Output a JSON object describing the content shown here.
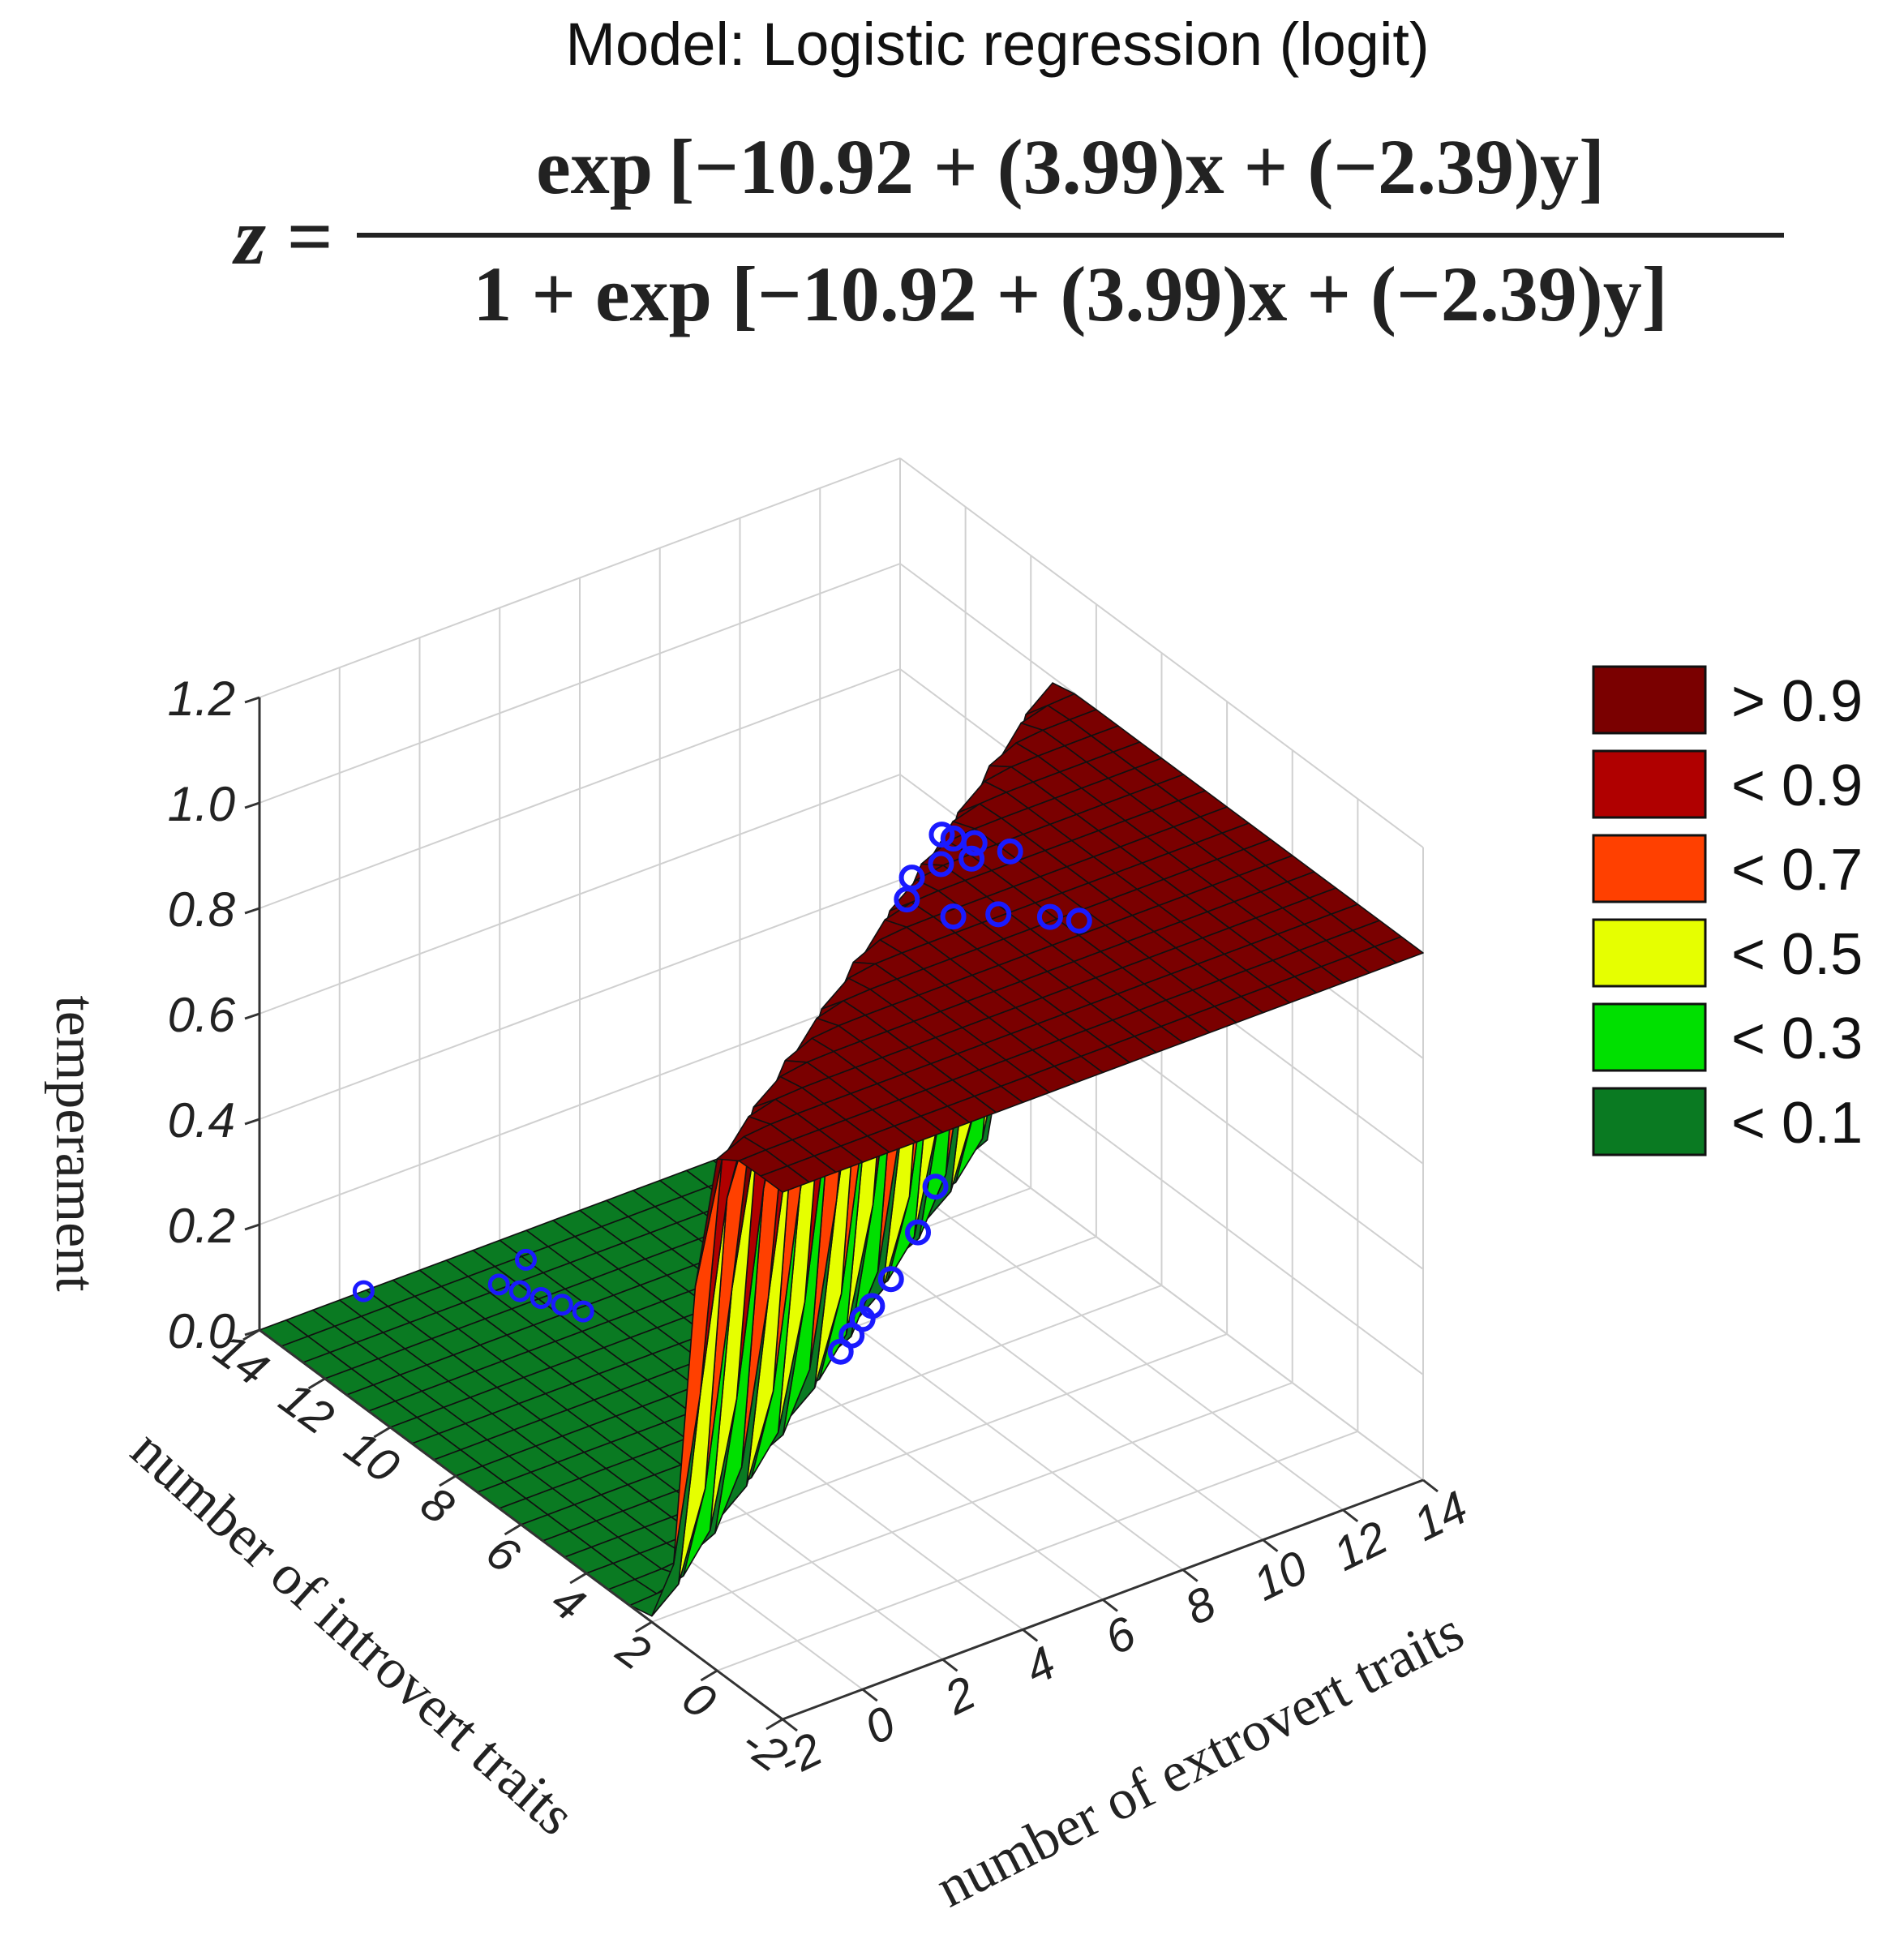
{
  "page": {
    "title": "Model: Logistic regression (logit)"
  },
  "equation": {
    "lhs": "z =",
    "numerator": "exp [−10.92 + (3.99)x + (−2.39)y]",
    "denominator": "1 + exp [−10.92 + (3.99)x + (−2.39)y]"
  },
  "chart_data": {
    "type": "surface3d",
    "model": {
      "intercept": -10.92,
      "coef_x": 3.99,
      "coef_y": -2.39
    },
    "x_axis": {
      "label": "number of extrovert traits",
      "ticks": [
        "-2",
        "0",
        "2",
        "4",
        "6",
        "8",
        "10",
        "12",
        "14"
      ],
      "range": [
        -2,
        14
      ]
    },
    "y_axis": {
      "label": "number of introvert traits",
      "ticks": [
        "-2",
        "0",
        "2",
        "4",
        "6",
        "8",
        "10",
        "12",
        "14"
      ],
      "range": [
        -2,
        14
      ]
    },
    "z_axis": {
      "label": "temperament",
      "ticks": [
        "0.0",
        "0.2",
        "0.4",
        "0.6",
        "0.8",
        "1.0",
        "1.2"
      ],
      "range": [
        0,
        1.2
      ]
    },
    "legend": {
      "placement": "right",
      "items": [
        {
          "label": "> 0.9",
          "color": "#7a0000"
        },
        {
          "label": "< 0.9",
          "color": "#b00000"
        },
        {
          "label": "< 0.7",
          "color": "#ff4000"
        },
        {
          "label": "< 0.5",
          "color": "#e6ff00"
        },
        {
          "label": "< 0.3",
          "color": "#00e000"
        },
        {
          "label": "< 0.1",
          "color": "#0a7a22"
        }
      ]
    },
    "points_high": [
      [
        4.2,
        4.0
      ],
      [
        4.6,
        4.6
      ],
      [
        5.0,
        5.2
      ],
      [
        4.0,
        3.6
      ],
      [
        3.6,
        2.8
      ],
      [
        3.2,
        1.8
      ],
      [
        3.0,
        1.2
      ],
      [
        5.8,
        4.2
      ],
      [
        6.2,
        4.4
      ],
      [
        6.6,
        4.0
      ],
      [
        6.0,
        3.2
      ],
      [
        6.4,
        3.0
      ],
      [
        6.8,
        3.4
      ],
      [
        8.2,
        5.0
      ],
      [
        8.6,
        4.2
      ],
      [
        9.2,
        3.4
      ],
      [
        9.6,
        3.0
      ],
      [
        5.4,
        3.0
      ],
      [
        7.0,
        2.6
      ]
    ],
    "points_low": [
      [
        -0.8,
        9.0
      ],
      [
        -0.4,
        8.8
      ],
      [
        0.0,
        8.6
      ],
      [
        0.4,
        8.4
      ],
      [
        0.8,
        8.2
      ],
      [
        -1.2,
        8.0
      ],
      [
        -2.0,
        11.4
      ]
    ],
    "grid": true
  }
}
